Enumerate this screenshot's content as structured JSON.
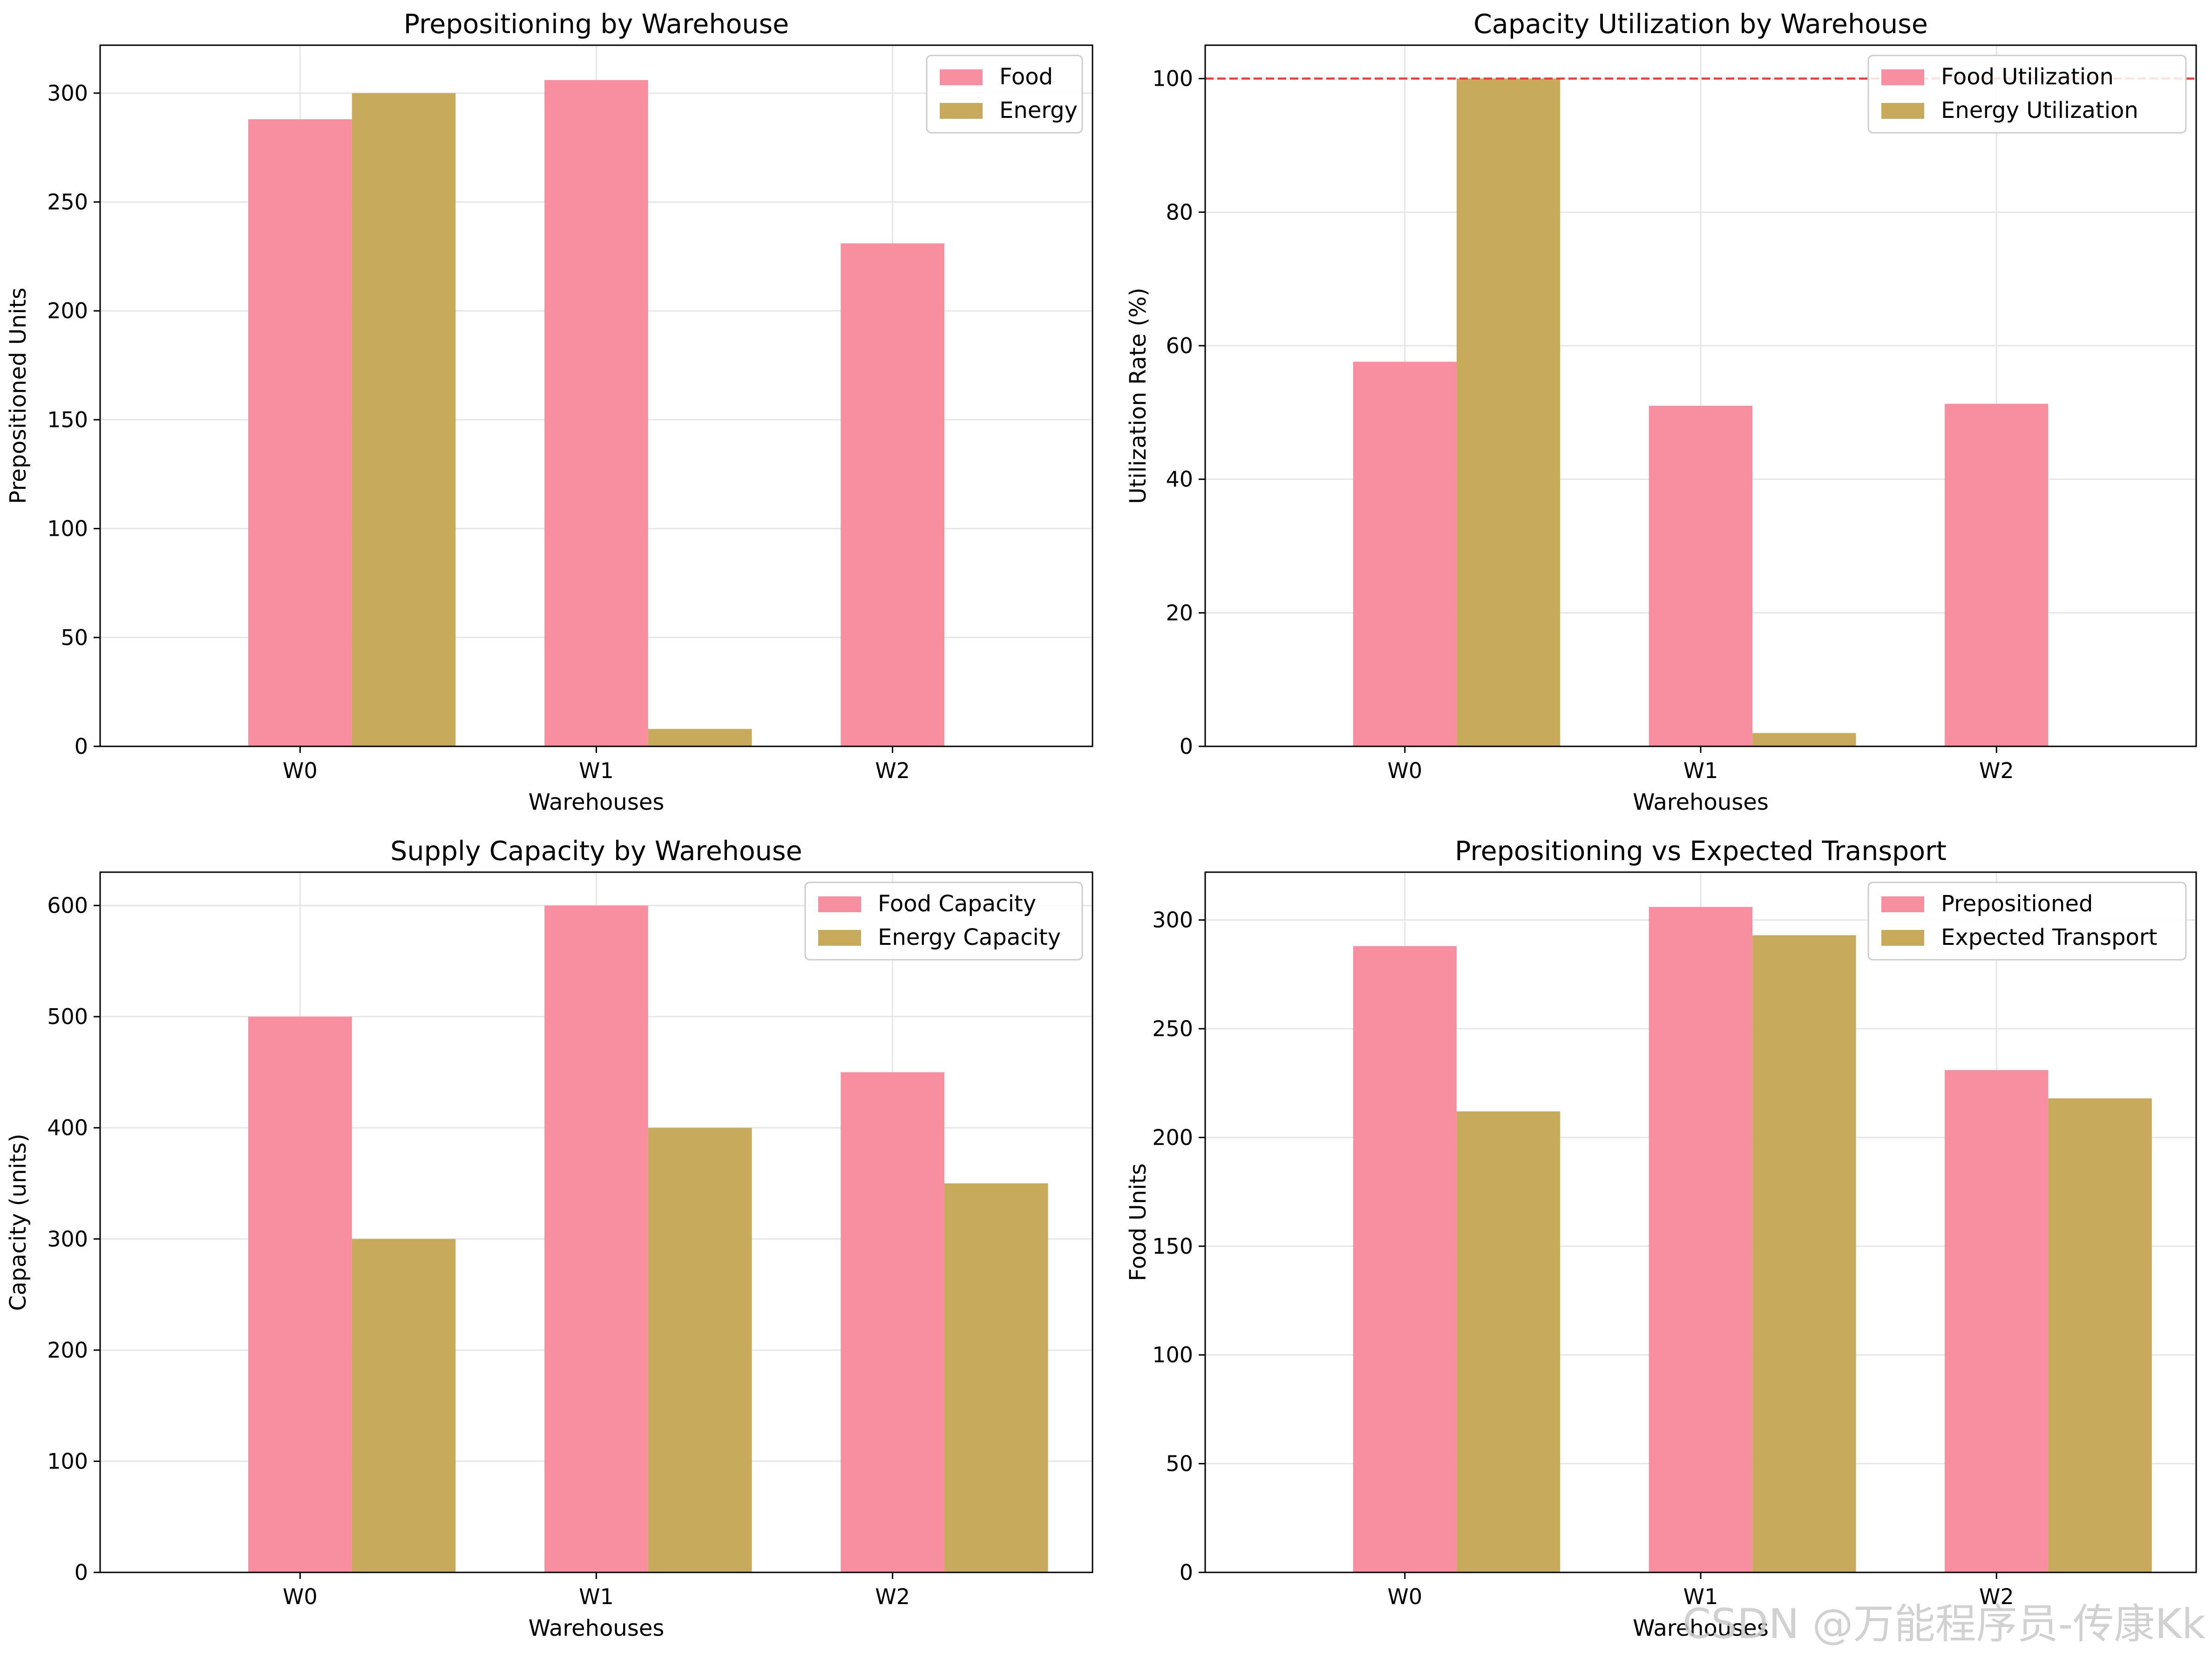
{
  "colors": {
    "food": "#f78fa0",
    "energy": "#c7aa5b",
    "reference": "#e8403f",
    "grid": "#e6e6e6"
  },
  "watermark": "CSDN @万能程序员-传康Kk",
  "chart_data": [
    {
      "type": "bar",
      "title": "Prepositioning by Warehouse",
      "xlabel": "Warehouses",
      "ylabel": "Prepositioned Units",
      "categories": [
        "W0",
        "W1",
        "W2"
      ],
      "ylim": [
        0,
        322
      ],
      "yticks": [
        0,
        50,
        100,
        150,
        200,
        250,
        300
      ],
      "grid": true,
      "legend_position": "upper right",
      "series": [
        {
          "name": "Food",
          "values": [
            288,
            306,
            231
          ]
        },
        {
          "name": "Energy",
          "values": [
            300,
            8,
            0
          ]
        }
      ]
    },
    {
      "type": "bar",
      "title": "Capacity Utilization by Warehouse",
      "xlabel": "Warehouses",
      "ylabel": "Utilization Rate (%)",
      "categories": [
        "W0",
        "W1",
        "W2"
      ],
      "ylim": [
        0,
        105
      ],
      "yticks": [
        0,
        20,
        40,
        60,
        80,
        100
      ],
      "grid": true,
      "reference_line": 100,
      "legend_position": "upper right",
      "series": [
        {
          "name": "Food Utilization",
          "values": [
            57.6,
            51.0,
            51.3
          ]
        },
        {
          "name": "Energy Utilization",
          "values": [
            100,
            2.0,
            0
          ]
        }
      ]
    },
    {
      "type": "bar",
      "title": "Supply Capacity by Warehouse",
      "xlabel": "Warehouses",
      "ylabel": "Capacity (units)",
      "categories": [
        "W0",
        "W1",
        "W2"
      ],
      "ylim": [
        0,
        630
      ],
      "yticks": [
        0,
        100,
        200,
        300,
        400,
        500,
        600
      ],
      "grid": true,
      "legend_position": "upper right",
      "series": [
        {
          "name": "Food Capacity",
          "values": [
            500,
            600,
            450
          ]
        },
        {
          "name": "Energy Capacity",
          "values": [
            300,
            400,
            350
          ]
        }
      ]
    },
    {
      "type": "bar",
      "title": "Prepositioning vs Expected Transport",
      "xlabel": "Warehouses",
      "ylabel": "Food Units",
      "categories": [
        "W0",
        "W1",
        "W2"
      ],
      "ylim": [
        0,
        322
      ],
      "yticks": [
        0,
        50,
        100,
        150,
        200,
        250,
        300
      ],
      "grid": true,
      "legend_position": "upper right",
      "series": [
        {
          "name": "Prepositioned",
          "values": [
            288,
            306,
            231
          ]
        },
        {
          "name": "Expected Transport",
          "values": [
            212,
            293,
            218
          ]
        }
      ]
    }
  ]
}
